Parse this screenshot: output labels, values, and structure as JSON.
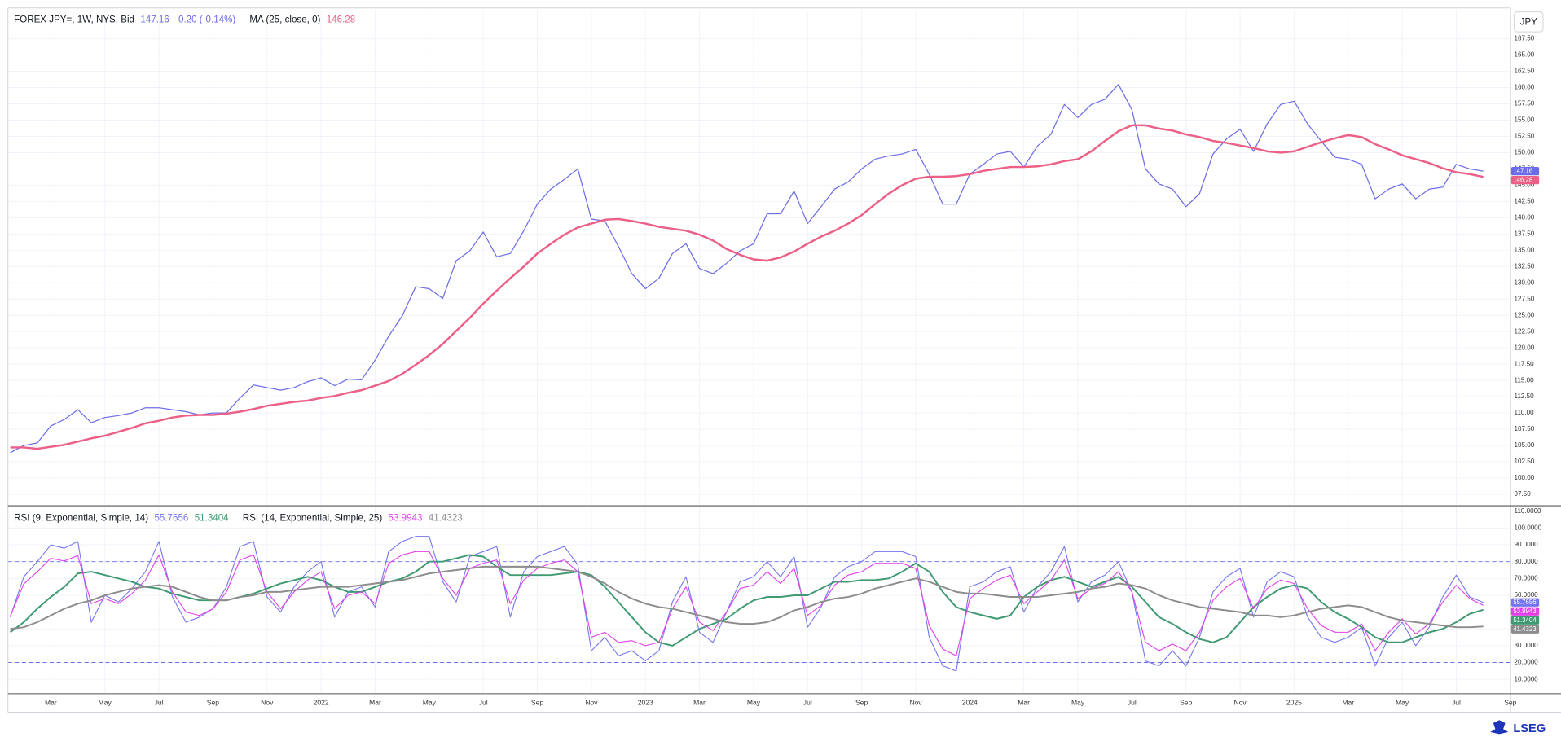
{
  "chart_data": {
    "type": "line",
    "categories": [
      null,
      null,
      null,
      "Mar",
      null,
      null,
      null,
      "May",
      null,
      null,
      null,
      "Jul",
      null,
      null,
      null,
      "Sep",
      null,
      null,
      null,
      "Nov",
      null,
      null,
      null,
      "2022",
      null,
      null,
      null,
      "Mar",
      null,
      null,
      null,
      "May",
      null,
      null,
      null,
      "Jul",
      null,
      null,
      null,
      "Sep",
      null,
      null,
      null,
      "Nov",
      null,
      null,
      null,
      "2023",
      null,
      null,
      null,
      "Mar",
      null,
      null,
      null,
      "May",
      null,
      null,
      null,
      "Jul",
      null,
      null,
      null,
      "Sep",
      null,
      null,
      null,
      "Nov",
      null,
      null,
      null,
      "2024",
      null,
      null,
      null,
      "Mar",
      null,
      null,
      null,
      "May",
      null,
      null,
      null,
      "Jul",
      null,
      null,
      null,
      "Sep",
      null,
      null,
      null,
      "Nov",
      null,
      null,
      null,
      "2025",
      null,
      null,
      null,
      "Mar",
      null,
      null,
      null,
      "May",
      null,
      null,
      null,
      "Jul",
      null,
      null,
      null,
      "Sep"
    ],
    "grid": true,
    "panes": [
      {
        "change": "-0.20 (-0.14%)",
        "unit": "JPY",
        "ylim": [
          95.97,
          171.93
        ],
        "yticks": [
          {
            "value": 97.5,
            "label": "97.50"
          },
          {
            "value": 100,
            "label": "100.00"
          },
          {
            "value": 102.5,
            "label": "102.50"
          },
          {
            "value": 105,
            "label": "105.00"
          },
          {
            "value": 107.5,
            "label": "107.50"
          },
          {
            "value": 110,
            "label": "110.00"
          },
          {
            "value": 112.5,
            "label": "112.50"
          },
          {
            "value": 115,
            "label": "115.00"
          },
          {
            "value": 117.5,
            "label": "117.50"
          },
          {
            "value": 120,
            "label": "120.00"
          },
          {
            "value": 122.5,
            "label": "122.50"
          },
          {
            "value": 125,
            "label": "125.00"
          },
          {
            "value": 127.5,
            "label": "127.50"
          },
          {
            "value": 130,
            "label": "130.00"
          },
          {
            "value": 132.5,
            "label": "132.50"
          },
          {
            "value": 135,
            "label": "135.00"
          },
          {
            "value": 137.5,
            "label": "137.50"
          },
          {
            "value": 140,
            "label": "140.00"
          },
          {
            "value": 142.5,
            "label": "142.50"
          },
          {
            "value": 145,
            "label": "145.00"
          },
          {
            "value": 147.5,
            "label": "147.50"
          },
          {
            "value": 150,
            "label": "150.00"
          },
          {
            "value": 152.5,
            "label": "152.50"
          },
          {
            "value": 155,
            "label": "155.00"
          },
          {
            "value": 157.5,
            "label": "157.50"
          },
          {
            "value": 160,
            "label": "160.00"
          },
          {
            "value": 162.5,
            "label": "162.50"
          },
          {
            "value": 165,
            "label": "165.00"
          },
          {
            "value": 167.5,
            "label": "167.50"
          }
        ],
        "series": [
          {
            "name": "FOREX JPY=, 1W, NYS, Bid",
            "color": "#6b6bea",
            "width": 1,
            "values": [
              103.9,
              105.0,
              105.4,
              108.0,
              109.0,
              110.5,
              108.5,
              109.3,
              109.6,
              110.0,
              110.8,
              110.8,
              110.5,
              110.2,
              109.7,
              110.0,
              110.0,
              112.3,
              114.3,
              113.9,
              113.5,
              113.9,
              114.8,
              115.4,
              114.2,
              115.2,
              115.1,
              118.1,
              121.8,
              124.9,
              129.4,
              129.1,
              127.6,
              133.4,
              134.9,
              137.8,
              134.0,
              134.5,
              138.0,
              142.1,
              144.4,
              145.9,
              147.5,
              139.8,
              139.5,
              135.6,
              131.4,
              129.1,
              130.7,
              134.5,
              136.0,
              132.2,
              131.4,
              133.0,
              134.9,
              136.0,
              140.6,
              140.6,
              144.1,
              139.1,
              141.7,
              144.4,
              145.5,
              147.5,
              149.0,
              149.5,
              149.8,
              150.5,
              146.7,
              142.1,
              142.1,
              146.7,
              148.2,
              149.8,
              150.2,
              147.8,
              151.0,
              152.8,
              157.4,
              155.4,
              157.4,
              158.2,
              160.5,
              156.6,
              147.5,
              145.2,
              144.4,
              141.7,
              143.7,
              149.8,
              152.1,
              153.6,
              150.2,
              154.4,
              157.4,
              157.9,
              154.4,
              151.8,
              149.3,
              149.0,
              148.2,
              142.9,
              144.4,
              145.2,
              142.9,
              144.4,
              144.7,
              148.2,
              147.5,
              147.16,
              null,
              null
            ]
          },
          {
            "name": "MA (25, close, 0)",
            "color": "#ec5f86",
            "width": 2,
            "values": [
              104.7,
              104.7,
              104.5,
              104.8,
              105.1,
              105.6,
              106.1,
              106.5,
              107.1,
              107.7,
              108.4,
              108.8,
              109.3,
              109.6,
              109.7,
              109.7,
              109.9,
              110.2,
              110.6,
              111.1,
              111.4,
              111.7,
              111.9,
              112.3,
              112.6,
              113.1,
              113.5,
              114.2,
              114.9,
              116.0,
              117.4,
              118.9,
              120.6,
              122.6,
              124.6,
              126.8,
              128.8,
              130.7,
              132.5,
              134.5,
              136.0,
              137.4,
              138.5,
              139.1,
              139.7,
              139.8,
              139.5,
              139.1,
              138.6,
              138.3,
              138.0,
              137.4,
              136.5,
              135.2,
              134.3,
              133.6,
              133.4,
              133.9,
              134.8,
              136.0,
              137.1,
              138.0,
              139.1,
              140.4,
              142.1,
              143.7,
              145.0,
              146.0,
              146.3,
              146.3,
              146.4,
              146.7,
              147.2,
              147.5,
              147.8,
              147.8,
              147.9,
              148.2,
              148.7,
              149.0,
              150.2,
              151.8,
              153.3,
              154.2,
              154.2,
              153.7,
              153.4,
              152.8,
              152.4,
              151.8,
              151.5,
              151.1,
              150.7,
              150.2,
              150.0,
              150.2,
              150.9,
              151.6,
              152.2,
              152.7,
              152.4,
              151.3,
              150.5,
              149.6,
              149.0,
              148.4,
              147.6,
              147.0,
              146.7,
              146.28,
              null,
              null
            ]
          }
        ]
      },
      {
        "legend": [
          "RSI (9, Exponential, Simple, 14)",
          "RSI (14, Exponential, Simple, 25)"
        ],
        "ylim": [
          1.72,
          112.37
        ],
        "yticks": [
          {
            "value": 10,
            "label": "10.0000"
          },
          {
            "value": 20,
            "label": "20.0000"
          },
          {
            "value": 30,
            "label": "30.0000"
          },
          {
            "value": 40,
            "label": "40.0000"
          },
          {
            "value": 50,
            "label": "50.0000"
          },
          {
            "value": 60,
            "label": "60.0000"
          },
          {
            "value": 70,
            "label": "70.0000"
          },
          {
            "value": 80,
            "label": "80.0000"
          },
          {
            "value": 90,
            "label": "90.0000"
          },
          {
            "value": 100,
            "label": "100.0000"
          },
          {
            "value": 110,
            "label": "110.0000"
          }
        ],
        "hlines": [
          80,
          20
        ],
        "hline_color": "#6b6bea",
        "series": [
          {
            "group": 0,
            "color": "#7575f0",
            "width": 0.9,
            "values": [
              47,
              71,
              80,
              90,
              88,
              92,
              44,
              60,
              56,
              64,
              74,
              92,
              59,
              44,
              47,
              52,
              65,
              89,
              92,
              59,
              50,
              65,
              74,
              80,
              47,
              62,
              65,
              53,
              86,
              92,
              95,
              95,
              68,
              56,
              83,
              86,
              89,
              47,
              74,
              83,
              86,
              89,
              78,
              27,
              35,
              24,
              27,
              21,
              27,
              56,
              71,
              38,
              32,
              50,
              68,
              71,
              80,
              71,
              83,
              41,
              53,
              71,
              77,
              80,
              86,
              86,
              86,
              83,
              35,
              18,
              15,
              65,
              68,
              74,
              77,
              50,
              65,
              74,
              89,
              56,
              68,
              72,
              80,
              62,
              21,
              18,
              27,
              18,
              35,
              62,
              71,
              76,
              47,
              68,
              74,
              71,
              47,
              35,
              32,
              35,
              41,
              18,
              35,
              44,
              30,
              41,
              59,
              72,
              59,
              55.7656,
              null,
              null
            ]
          },
          {
            "group": 0,
            "color": "#3f9a72",
            "width": 1.6,
            "values": [
              38,
              44,
              52,
              59,
              65,
              73,
              74,
              72,
              70,
              68,
              65,
              64,
              61,
              59,
              57,
              57,
              57,
              59,
              61,
              64,
              67,
              69,
              71,
              69,
              65,
              62,
              62,
              65,
              68,
              70,
              74,
              80,
              80,
              82,
              84,
              83,
              77,
              72,
              72,
              72,
              72,
              73,
              74,
              72,
              65,
              56,
              47,
              38,
              32,
              30,
              35,
              40,
              43,
              46,
              52,
              57,
              59,
              59,
              60,
              60,
              64,
              68,
              68,
              69,
              69,
              70,
              74,
              79,
              74,
              62,
              53,
              50,
              48,
              46,
              48,
              59,
              65,
              69,
              71,
              68,
              65,
              68,
              71,
              65,
              56,
              47,
              43,
              38,
              34,
              32,
              35,
              44,
              53,
              59,
              64,
              66,
              64,
              56,
              50,
              46,
              41,
              35,
              32,
              32,
              35,
              38,
              40,
              44,
              49,
              51.3404,
              null,
              null
            ]
          },
          {
            "group": 1,
            "color": "#e040e8",
            "width": 0.9,
            "values": [
              47.6,
              66.8,
              74,
              82,
              80.4,
              83.6,
              55,
              58,
              55,
              61,
              69,
              84,
              62,
              50,
              48,
              52,
              62,
              81,
              84,
              62,
              52,
              62,
              69,
              74,
              52,
              60,
              62,
              55,
              79,
              84,
              86,
              86,
              70,
              60,
              76,
              79,
              81,
              55,
              69,
              76,
              79,
              81,
              74,
              35,
              38,
              32,
              33,
              30,
              32,
              52,
              65,
              44,
              39,
              50,
              64,
              66,
              74,
              67,
              76,
              48,
              54,
              66,
              72,
              74,
              79,
              79,
              79,
              76,
              42,
              28,
              24,
              58,
              64,
              69,
              72,
              55,
              62,
              69,
              81,
              58,
              64,
              67,
              74,
              62,
              32,
              27,
              31,
              27,
              38,
              57,
              65,
              70,
              52,
              64,
              69,
              67,
              52,
              42,
              38,
              38,
              43,
              27,
              38,
              46,
              37,
              43,
              56,
              66,
              58,
              53.9943,
              null,
              null
            ]
          },
          {
            "group": 1,
            "color": "#8c8c8c",
            "width": 1.6,
            "values": [
              40,
              41,
              44,
              48,
              52,
              55,
              57,
              60,
              62,
              64,
              65,
              66,
              65,
              62,
              59,
              57,
              57,
              59,
              60,
              62,
              62,
              63,
              64,
              65,
              65,
              65,
              66,
              67,
              68,
              69,
              71,
              73,
              74,
              75,
              76,
              77,
              77,
              77,
              77,
              77,
              76,
              75,
              74,
              71,
              67,
              62,
              58,
              55,
              53,
              52,
              50,
              48,
              46,
              44,
              43,
              43,
              44,
              47,
              51,
              53,
              56,
              58,
              59,
              61,
              64,
              66,
              68,
              70,
              68,
              65,
              62,
              61,
              61,
              60,
              59,
              59,
              59,
              60,
              61,
              62,
              64,
              65,
              67,
              66,
              64,
              60,
              57,
              55,
              53,
              52,
              51,
              50,
              48,
              48,
              47,
              48,
              50,
              52,
              53,
              54,
              53,
              50,
              47,
              45,
              44,
              43,
              42,
              41,
              41,
              41.4323,
              null,
              null
            ]
          }
        ]
      }
    ]
  },
  "brand": "LSEG"
}
